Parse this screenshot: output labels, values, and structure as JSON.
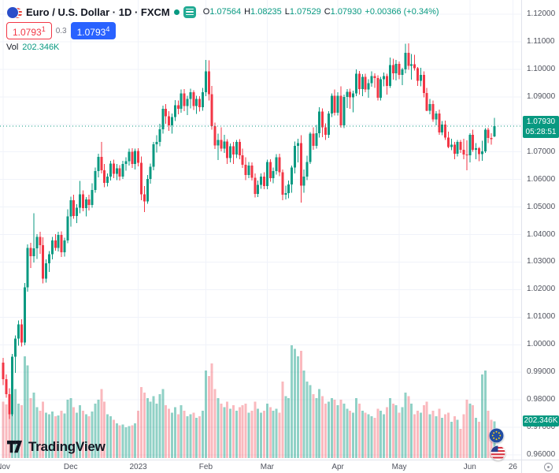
{
  "header": {
    "symbol_title": "Euro / U.S. Dollar · 1D · FXCM",
    "ohlc": {
      "o_label": "O",
      "o": "1.07564",
      "h_label": "H",
      "h": "1.08235",
      "l_label": "L",
      "l": "1.07529",
      "c_label": "C",
      "c": "1.07930",
      "change": "+0.00366 (+0.34%)"
    },
    "sell_price_main": "1.0793",
    "sell_price_sup": "1",
    "spread": "0.3",
    "buy_price_main": "1.0793",
    "buy_price_sup": "4",
    "vol_label": "Vol",
    "vol_value": "202.346K"
  },
  "badges": {
    "last_price": "1.07930",
    "countdown": "05:28:51",
    "volume": "202.346K"
  },
  "logo": {
    "text": "TradingView"
  },
  "colors": {
    "up": "#089981",
    "down": "#f23645",
    "buy_blue": "#2962ff",
    "sell_red": "#f23645",
    "badge_green": "#089981"
  },
  "chart_data": {
    "type": "candlestick",
    "title": "EUR/USD daily candlesticks with volume",
    "volume_unit": "K",
    "legend_position": "top-left",
    "grid": true,
    "price_axis": {
      "min": 0.96,
      "max": 1.12,
      "ticks": [
        "1.12000",
        "1.11000",
        "1.10000",
        "1.09000",
        "1.08000",
        "1.07000",
        "1.06000",
        "1.05000",
        "1.04000",
        "1.03000",
        "1.02000",
        "1.01000",
        "1.00000",
        "0.99000",
        "0.98000",
        "0.97000",
        "0.96000"
      ]
    },
    "time_axis": {
      "labels": [
        {
          "label": "Nov",
          "index": 0
        },
        {
          "label": "Dec",
          "index": 22
        },
        {
          "label": "2023",
          "index": 44
        },
        {
          "label": "Feb",
          "index": 66
        },
        {
          "label": "Mar",
          "index": 86
        },
        {
          "label": "Apr",
          "index": 109
        },
        {
          "label": "May",
          "index": 129
        },
        {
          "label": "Jun",
          "index": 152
        },
        {
          "label": "26",
          "index": 166
        }
      ]
    },
    "candles": [
      [
        0.9935,
        0.9952,
        0.9853,
        0.9875,
        310
      ],
      [
        0.9875,
        0.9892,
        0.9808,
        0.982,
        295
      ],
      [
        0.982,
        0.9842,
        0.9731,
        0.9748,
        340
      ],
      [
        0.9748,
        0.9966,
        0.974,
        0.9957,
        430
      ],
      [
        0.9957,
        1.0034,
        0.9898,
        1.0022,
        380
      ],
      [
        1.0022,
        1.0088,
        0.9996,
        1.0074,
        300
      ],
      [
        1.0074,
        1.0092,
        0.9994,
        1.0008,
        290
      ],
      [
        1.0008,
        1.0224,
        0.9998,
        1.0208,
        560
      ],
      [
        1.0208,
        1.0364,
        1.0192,
        1.0352,
        510
      ],
      [
        1.0352,
        1.037,
        1.0278,
        1.0322,
        330
      ],
      [
        1.0322,
        1.0478,
        1.0298,
        1.035,
        360
      ],
      [
        1.035,
        1.0402,
        1.0312,
        1.0392,
        280
      ],
      [
        1.0392,
        1.041,
        1.033,
        1.0362,
        260
      ],
      [
        1.0362,
        1.039,
        1.0222,
        1.024,
        310
      ],
      [
        1.024,
        1.031,
        1.0226,
        1.0296,
        250
      ],
      [
        1.0296,
        1.034,
        1.0264,
        1.0328,
        240
      ],
      [
        1.0328,
        1.0392,
        1.031,
        1.0378,
        255
      ],
      [
        1.0378,
        1.0402,
        1.0342,
        1.0352,
        230
      ],
      [
        1.0352,
        1.041,
        1.0338,
        1.0398,
        235
      ],
      [
        1.0398,
        1.0412,
        1.0318,
        1.0336,
        260
      ],
      [
        1.0336,
        1.0388,
        1.032,
        1.0378,
        245
      ],
      [
        1.0378,
        1.0492,
        1.0368,
        1.0466,
        320
      ],
      [
        1.0466,
        1.0538,
        1.0428,
        1.0524,
        330
      ],
      [
        1.0524,
        1.0545,
        1.0458,
        1.0468,
        280
      ],
      [
        1.0468,
        1.051,
        1.0442,
        1.0498,
        250
      ],
      [
        1.0498,
        1.0594,
        1.0478,
        1.0546,
        290
      ],
      [
        1.0546,
        1.056,
        1.0484,
        1.0496,
        260
      ],
      [
        1.0496,
        1.0536,
        1.0466,
        1.0528,
        240
      ],
      [
        1.0528,
        1.0544,
        1.0488,
        1.0508,
        230
      ],
      [
        1.0508,
        1.0586,
        1.0498,
        1.0562,
        255
      ],
      [
        1.0562,
        1.0644,
        1.0552,
        1.063,
        300
      ],
      [
        1.063,
        1.0694,
        1.0608,
        1.0682,
        320
      ],
      [
        1.0682,
        1.0736,
        1.0622,
        1.0634,
        380
      ],
      [
        1.0634,
        1.0656,
        1.0572,
        1.0588,
        310
      ],
      [
        1.0588,
        1.0622,
        1.0574,
        1.061,
        240
      ],
      [
        1.061,
        1.0668,
        1.0596,
        1.0658,
        230
      ],
      [
        1.0658,
        1.0672,
        1.0604,
        1.062,
        210
      ],
      [
        1.062,
        1.0656,
        1.0598,
        1.064,
        190
      ],
      [
        1.064,
        1.0652,
        1.0596,
        1.061,
        180
      ],
      [
        1.061,
        1.0668,
        1.0602,
        1.0656,
        185
      ],
      [
        1.0656,
        1.068,
        1.0632,
        1.0666,
        170
      ],
      [
        1.0666,
        1.0712,
        1.065,
        1.07,
        175
      ],
      [
        1.07,
        1.0714,
        1.0642,
        1.0656,
        180
      ],
      [
        1.0656,
        1.0712,
        1.0636,
        1.0704,
        190
      ],
      [
        1.0704,
        1.0714,
        1.0648,
        1.066,
        260
      ],
      [
        1.066,
        1.0684,
        1.0524,
        1.0546,
        390
      ],
      [
        1.0546,
        1.0576,
        1.0482,
        1.052,
        360
      ],
      [
        1.052,
        1.0616,
        1.0512,
        1.0602,
        330
      ],
      [
        1.0602,
        1.0658,
        1.0584,
        1.0646,
        310
      ],
      [
        1.0646,
        1.0736,
        1.0634,
        1.0728,
        340
      ],
      [
        1.0728,
        1.076,
        1.0698,
        1.0736,
        300
      ],
      [
        1.0736,
        1.0802,
        1.072,
        1.0782,
        350
      ],
      [
        1.0782,
        1.0868,
        1.0766,
        1.0856,
        380
      ],
      [
        1.0856,
        1.0874,
        1.0802,
        1.083,
        290
      ],
      [
        1.083,
        1.0848,
        1.0776,
        1.0796,
        270
      ],
      [
        1.0796,
        1.084,
        1.0766,
        1.0826,
        250
      ],
      [
        1.0826,
        1.0888,
        1.0812,
        1.087,
        280
      ],
      [
        1.087,
        1.0886,
        1.0836,
        1.0856,
        240
      ],
      [
        1.0856,
        1.0926,
        1.0842,
        1.0912,
        290
      ],
      [
        1.0912,
        1.0928,
        1.0848,
        1.0866,
        260
      ],
      [
        1.0866,
        1.0904,
        1.0834,
        1.0892,
        230
      ],
      [
        1.0892,
        1.093,
        1.0858,
        1.0916,
        240
      ],
      [
        1.0916,
        1.0924,
        1.0852,
        1.0866,
        250
      ],
      [
        1.0866,
        1.0904,
        1.0838,
        1.0892,
        220
      ],
      [
        1.0892,
        1.0902,
        1.0846,
        1.0862,
        230
      ],
      [
        1.0862,
        1.0932,
        1.085,
        1.0916,
        260
      ],
      [
        1.0916,
        1.1034,
        1.0902,
        1.0992,
        480
      ],
      [
        1.0992,
        1.1032,
        1.0886,
        1.091,
        450
      ],
      [
        1.091,
        1.094,
        1.078,
        1.0794,
        520
      ],
      [
        1.0794,
        1.0806,
        1.071,
        1.0724,
        380
      ],
      [
        1.0724,
        1.0766,
        1.067,
        1.0744,
        330
      ],
      [
        1.0744,
        1.079,
        1.0702,
        1.0712,
        300
      ],
      [
        1.0712,
        1.0762,
        1.0696,
        1.0738,
        280
      ],
      [
        1.0738,
        1.0746,
        1.0656,
        1.0678,
        310
      ],
      [
        1.0678,
        1.073,
        1.0662,
        1.072,
        270
      ],
      [
        1.072,
        1.0736,
        1.0656,
        1.069,
        290
      ],
      [
        1.069,
        1.0744,
        1.0678,
        1.0736,
        260
      ],
      [
        1.0736,
        1.0746,
        1.0674,
        1.0688,
        280
      ],
      [
        1.0688,
        1.0712,
        1.0642,
        1.0654,
        290
      ],
      [
        1.0654,
        1.068,
        1.0598,
        1.0616,
        300
      ],
      [
        1.0616,
        1.0664,
        1.0604,
        1.065,
        250
      ],
      [
        1.065,
        1.0662,
        1.0596,
        1.0606,
        260
      ],
      [
        1.0606,
        1.0622,
        1.0534,
        1.0548,
        310
      ],
      [
        1.0548,
        1.0596,
        1.0536,
        1.058,
        270
      ],
      [
        1.058,
        1.0622,
        1.0566,
        1.061,
        250
      ],
      [
        1.061,
        1.0626,
        1.0564,
        1.0576,
        260
      ],
      [
        1.0576,
        1.0672,
        1.0564,
        1.0664,
        300
      ],
      [
        1.0664,
        1.0674,
        1.0592,
        1.0604,
        280
      ],
      [
        1.0604,
        1.0644,
        1.0586,
        1.063,
        260
      ],
      [
        1.063,
        1.0692,
        1.0618,
        1.068,
        270
      ],
      [
        1.068,
        1.0694,
        1.0612,
        1.0626,
        250
      ],
      [
        1.0626,
        1.0636,
        1.0524,
        1.0544,
        420
      ],
      [
        1.0544,
        1.0578,
        1.0528,
        1.055,
        340
      ],
      [
        1.055,
        1.0596,
        1.0532,
        1.0582,
        330
      ],
      [
        1.0582,
        1.065,
        1.0552,
        1.0644,
        620
      ],
      [
        1.0644,
        1.0738,
        1.0622,
        1.0722,
        600
      ],
      [
        1.0722,
        1.0748,
        1.0662,
        1.0732,
        560
      ],
      [
        1.0732,
        1.076,
        1.0516,
        1.0578,
        590
      ],
      [
        1.0578,
        1.0636,
        1.0552,
        1.061,
        480
      ],
      [
        1.061,
        1.0686,
        1.0598,
        1.0664,
        420
      ],
      [
        1.0664,
        1.0772,
        1.0656,
        1.0766,
        400
      ],
      [
        1.0766,
        1.079,
        1.0708,
        1.0722,
        350
      ],
      [
        1.0722,
        1.0798,
        1.0712,
        1.0768,
        330
      ],
      [
        1.0768,
        1.0862,
        1.0752,
        1.0846,
        380
      ],
      [
        1.0846,
        1.0858,
        1.0754,
        1.079,
        340
      ],
      [
        1.079,
        1.0804,
        1.0744,
        1.0762,
        300
      ],
      [
        1.0762,
        1.0848,
        1.075,
        1.084,
        310
      ],
      [
        1.084,
        1.0912,
        1.0826,
        1.0904,
        330
      ],
      [
        1.0904,
        1.0926,
        1.0832,
        1.0842,
        320
      ],
      [
        1.0842,
        1.0916,
        1.0832,
        1.0904,
        290
      ],
      [
        1.0904,
        1.0938,
        1.0788,
        1.0796,
        320
      ],
      [
        1.0796,
        1.0908,
        1.0786,
        1.09,
        300
      ],
      [
        1.09,
        1.0928,
        1.086,
        1.0918,
        270
      ],
      [
        1.0918,
        1.093,
        1.0856,
        1.0898,
        260
      ],
      [
        1.0898,
        1.0922,
        1.0844,
        1.0912,
        250
      ],
      [
        1.0912,
        1.1,
        1.0902,
        1.0984,
        330
      ],
      [
        1.0984,
        1.0994,
        1.0908,
        1.0928,
        300
      ],
      [
        1.0928,
        1.0982,
        1.0902,
        1.0972,
        260
      ],
      [
        1.0972,
        1.0984,
        1.0916,
        1.0926,
        250
      ],
      [
        1.0926,
        1.0964,
        1.0896,
        1.095,
        240
      ],
      [
        1.095,
        1.0992,
        1.0936,
        1.0976,
        230
      ],
      [
        1.0976,
        1.0986,
        1.0932,
        1.0968,
        220
      ],
      [
        1.0968,
        1.0978,
        1.0886,
        1.0896,
        270
      ],
      [
        1.0896,
        1.0972,
        1.0886,
        1.0964,
        260
      ],
      [
        1.0964,
        1.0988,
        1.0938,
        1.0976,
        240
      ],
      [
        1.0976,
        1.0984,
        1.0908,
        1.094,
        280
      ],
      [
        1.094,
        1.1042,
        1.0932,
        1.1016,
        330
      ],
      [
        1.1016,
        1.1038,
        1.0962,
        1.0986,
        300
      ],
      [
        1.0986,
        1.1034,
        1.096,
        1.102,
        290
      ],
      [
        1.102,
        1.1028,
        1.0964,
        1.098,
        250
      ],
      [
        1.098,
        1.1006,
        1.0942,
        1.1,
        280
      ],
      [
        1.1,
        1.1092,
        1.0986,
        1.106,
        360
      ],
      [
        1.106,
        1.1094,
        1.0998,
        1.1012,
        340
      ],
      [
        1.1012,
        1.1056,
        1.0962,
        1.1018,
        300
      ],
      [
        1.1018,
        1.1052,
        1.0996,
        1.1004,
        240
      ],
      [
        1.1004,
        1.1008,
        1.094,
        1.0958,
        260
      ],
      [
        1.0958,
        1.1006,
        1.0938,
        1.098,
        250
      ],
      [
        1.098,
        1.0992,
        1.0898,
        1.0914,
        290
      ],
      [
        1.0914,
        1.0932,
        1.0848,
        1.085,
        310
      ],
      [
        1.085,
        1.0892,
        1.0836,
        1.0874,
        240
      ],
      [
        1.0874,
        1.0886,
        1.081,
        1.0818,
        260
      ],
      [
        1.0818,
        1.0848,
        1.0796,
        1.084,
        230
      ],
      [
        1.084,
        1.0854,
        1.0762,
        1.077,
        270
      ],
      [
        1.077,
        1.0812,
        1.076,
        1.08,
        220
      ],
      [
        1.08,
        1.0814,
        1.0744,
        1.0752,
        240
      ],
      [
        1.0752,
        1.0774,
        1.0714,
        1.0718,
        250
      ],
      [
        1.0718,
        1.0748,
        1.0706,
        1.0726,
        200
      ],
      [
        1.0726,
        1.0736,
        1.0674,
        1.0694,
        230
      ],
      [
        1.0694,
        1.0744,
        1.0684,
        1.0736,
        210
      ],
      [
        1.0736,
        1.0744,
        1.0696,
        1.0708,
        160
      ],
      [
        1.0708,
        1.0748,
        1.0674,
        1.069,
        240
      ],
      [
        1.069,
        1.0742,
        1.0634,
        1.0688,
        320
      ],
      [
        1.0688,
        1.0768,
        1.0662,
        1.0762,
        300
      ],
      [
        1.0762,
        1.078,
        1.07,
        1.0708,
        290
      ],
      [
        1.0708,
        1.0732,
        1.0674,
        1.0714,
        220
      ],
      [
        1.0714,
        1.0718,
        1.0666,
        1.0692,
        200
      ],
      [
        1.0692,
        1.074,
        1.0668,
        1.0702,
        460
      ],
      [
        1.0702,
        1.0786,
        1.0696,
        1.078,
        480
      ],
      [
        1.078,
        1.0788,
        1.0732,
        1.075,
        260
      ],
      [
        1.075,
        1.0768,
        1.0726,
        1.0746,
        210
      ],
      [
        1.07564,
        1.08235,
        1.07529,
        1.0793,
        202.346
      ]
    ]
  }
}
